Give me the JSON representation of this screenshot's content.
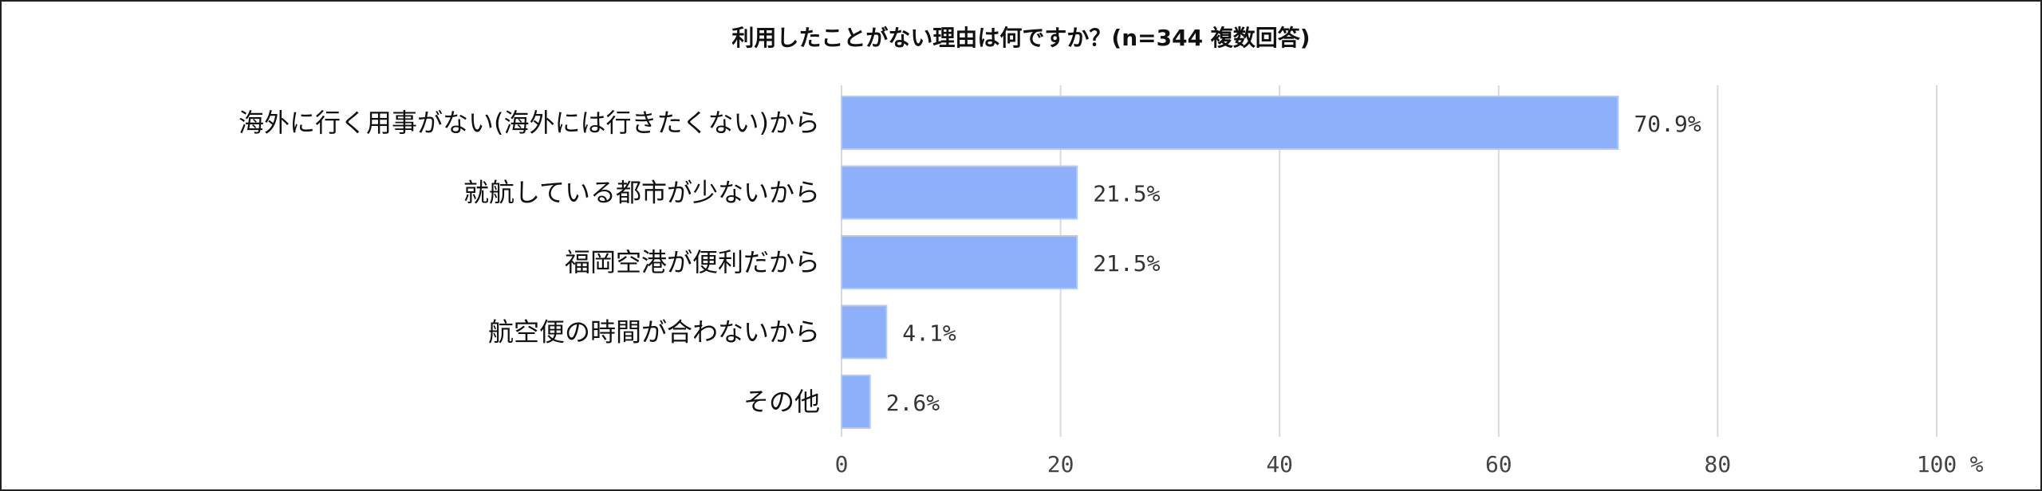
{
  "chart_data": {
    "type": "bar",
    "orientation": "horizontal",
    "title": "利用したことがない理由は何ですか？(n=344 複数回答)",
    "categories": [
      "海外に行く用事がない(海外には行きたくない)から",
      "就航している都市が少ないから",
      "福岡空港が便利だから",
      "航空便の時間が合わないから",
      "その他"
    ],
    "values": [
      70.9,
      21.5,
      21.5,
      4.1,
      2.6
    ],
    "value_labels": [
      "70.9%",
      "21.5%",
      "21.5%",
      "4.1%",
      "2.6%"
    ],
    "xlim": [
      0,
      100
    ],
    "xticks": [
      0,
      20,
      40,
      60,
      80,
      100
    ],
    "xunit": "%",
    "grid": true,
    "bar_color": "#8EB0FA",
    "bar_edge_color": "#B5C9F5",
    "grid_color": "#D9D9D9"
  }
}
